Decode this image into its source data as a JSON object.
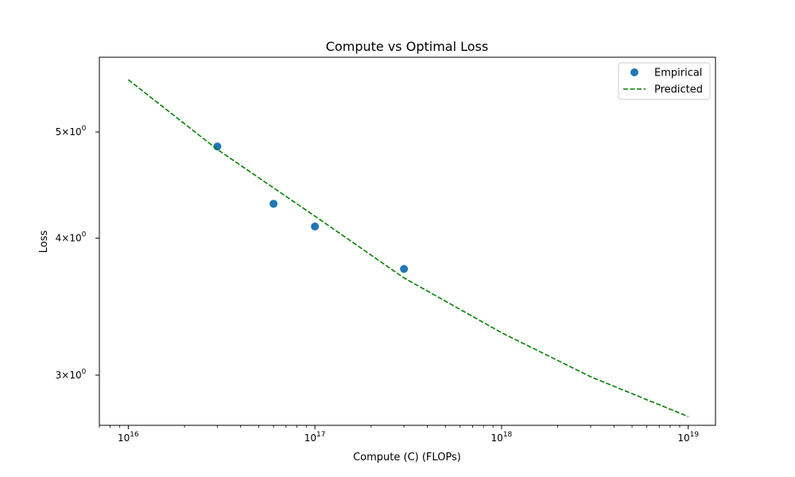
{
  "chart_data": {
    "type": "scatter",
    "title": "Compute vs Optimal Loss",
    "xlabel": "Compute (C) (FLOPs)",
    "ylabel": "Loss",
    "x_scale": "log",
    "y_scale": "log",
    "xlim": [
      7000000000000000.0,
      1.4e+19
    ],
    "ylim": [
      2.7,
      5.85
    ],
    "x_ticks": [
      {
        "value": 1e+16,
        "base": "10",
        "exp": "16"
      },
      {
        "value": 1e+17,
        "base": "10",
        "exp": "17"
      },
      {
        "value": 1e+18,
        "base": "10",
        "exp": "18"
      },
      {
        "value": 1e+19,
        "base": "10",
        "exp": "19"
      }
    ],
    "y_ticks": [
      {
        "value": 3,
        "coef": "3",
        "times": "×",
        "base": "10",
        "exp": "0"
      },
      {
        "value": 4,
        "coef": "4",
        "times": "×",
        "base": "10",
        "exp": "0"
      },
      {
        "value": 5,
        "coef": "5",
        "times": "×",
        "base": "10",
        "exp": "0"
      }
    ],
    "grid": false,
    "legend_position": "top-right",
    "series": [
      {
        "name": "Empirical",
        "kind": "scatter",
        "color": "#1f77b4",
        "points": [
          {
            "x": 3e+16,
            "y": 4.85
          },
          {
            "x": 6e+16,
            "y": 4.3
          },
          {
            "x": 1e+17,
            "y": 4.1
          },
          {
            "x": 3e+17,
            "y": 3.75
          }
        ]
      },
      {
        "name": "Predicted",
        "kind": "line",
        "style": "dashed",
        "color": "#008000",
        "points": [
          {
            "x": 1e+16,
            "y": 5.58
          },
          {
            "x": 3e+16,
            "y": 4.82
          },
          {
            "x": 1e+17,
            "y": 4.19
          },
          {
            "x": 3e+17,
            "y": 3.68
          },
          {
            "x": 1e+18,
            "y": 3.28
          },
          {
            "x": 3e+18,
            "y": 2.99
          },
          {
            "x": 1e+19,
            "y": 2.75
          }
        ]
      }
    ]
  }
}
